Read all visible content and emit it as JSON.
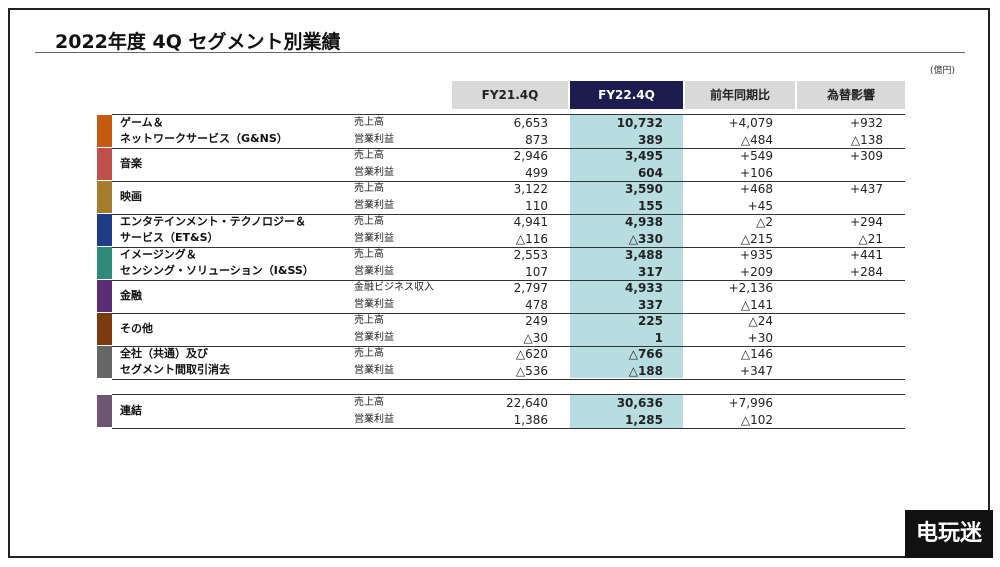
{
  "title": "2022年度 4Q セグメント別業績",
  "unit": "(億円)",
  "watermark": "电玩迷",
  "columns": [
    "FY21.4Q",
    "FY22.4Q",
    "前年同期比",
    "為替影響"
  ],
  "groups": [
    {
      "label": [
        "ゲーム＆",
        "ネットワークサービス（G&NS）"
      ],
      "color": "#c55a11",
      "items": [
        {
          "metric": "売上高",
          "fy21": "6,653",
          "fy22": "10,732",
          "yoy": "+4,079",
          "fx": "+932"
        },
        {
          "metric": "営業利益",
          "fy21": "873",
          "fy22": "389",
          "yoy": "△484",
          "fx": "△138"
        }
      ]
    },
    {
      "label": [
        "音楽"
      ],
      "color": "#c0504d",
      "items": [
        {
          "metric": "売上高",
          "fy21": "2,946",
          "fy22": "3,495",
          "yoy": "+549",
          "fx": "+309"
        },
        {
          "metric": "営業利益",
          "fy21": "499",
          "fy22": "604",
          "yoy": "+106"
        }
      ]
    },
    {
      "label": [
        "映画"
      ],
      "color": "#a47d2e",
      "items": [
        {
          "metric": "売上高",
          "fy21": "3,122",
          "fy22": "3,590",
          "yoy": "+468",
          "fx": "+437"
        },
        {
          "metric": "営業利益",
          "fy21": "110",
          "fy22": "155",
          "yoy": "+45"
        }
      ]
    },
    {
      "label": [
        "エンタテインメント・テクノロジー＆",
        "サービス（ET&S）"
      ],
      "color": "#1f3c88",
      "items": [
        {
          "metric": "売上高",
          "fy21": "4,941",
          "fy22": "4,938",
          "yoy": "△2",
          "fx": "+294"
        },
        {
          "metric": "営業利益",
          "fy21": "△116",
          "fy22": "△330",
          "yoy": "△215",
          "fx": "△21"
        }
      ]
    },
    {
      "label": [
        "イメージング＆",
        "センシング・ソリューション（I&SS）"
      ],
      "color": "#2e8b7a",
      "items": [
        {
          "metric": "売上高",
          "fy21": "2,553",
          "fy22": "3,488",
          "yoy": "+935",
          "fx": "+441"
        },
        {
          "metric": "営業利益",
          "fy21": "107",
          "fy22": "317",
          "yoy": "+209",
          "fx": "+284"
        }
      ]
    },
    {
      "label": [
        "金融"
      ],
      "color": "#5b2d74",
      "items": [
        {
          "metric": "金融ビジネス収入",
          "fy21": "2,797",
          "fy22": "4,933",
          "yoy": "+2,136"
        },
        {
          "metric": "営業利益",
          "fy21": "478",
          "fy22": "337",
          "yoy": "△141"
        }
      ]
    },
    {
      "label": [
        "その他"
      ],
      "color": "#7a3b0c",
      "items": [
        {
          "metric": "売上高",
          "fy21": "249",
          "fy22": "225",
          "yoy": "△24"
        },
        {
          "metric": "営業利益",
          "fy21": "△30",
          "fy22": "1",
          "yoy": "+30"
        }
      ]
    },
    {
      "label": [
        "全社（共通）及び",
        "セグメント間取引消去"
      ],
      "color": "#666666",
      "items": [
        {
          "metric": "売上高",
          "fy21": "△620",
          "fy22": "△766",
          "yoy": "△146"
        },
        {
          "metric": "営業利益",
          "fy21": "△536",
          "fy22": "△188",
          "yoy": "+347"
        }
      ]
    }
  ],
  "total": {
    "label": [
      "連結"
    ],
    "color": "#6e5670",
    "items": [
      {
        "metric": "売上高",
        "fy21": "22,640",
        "fy22": "30,636",
        "yoy": "+7,996"
      },
      {
        "metric": "営業利益",
        "fy21": "1,386",
        "fy22": "1,285",
        "yoy": "△102"
      }
    ]
  }
}
